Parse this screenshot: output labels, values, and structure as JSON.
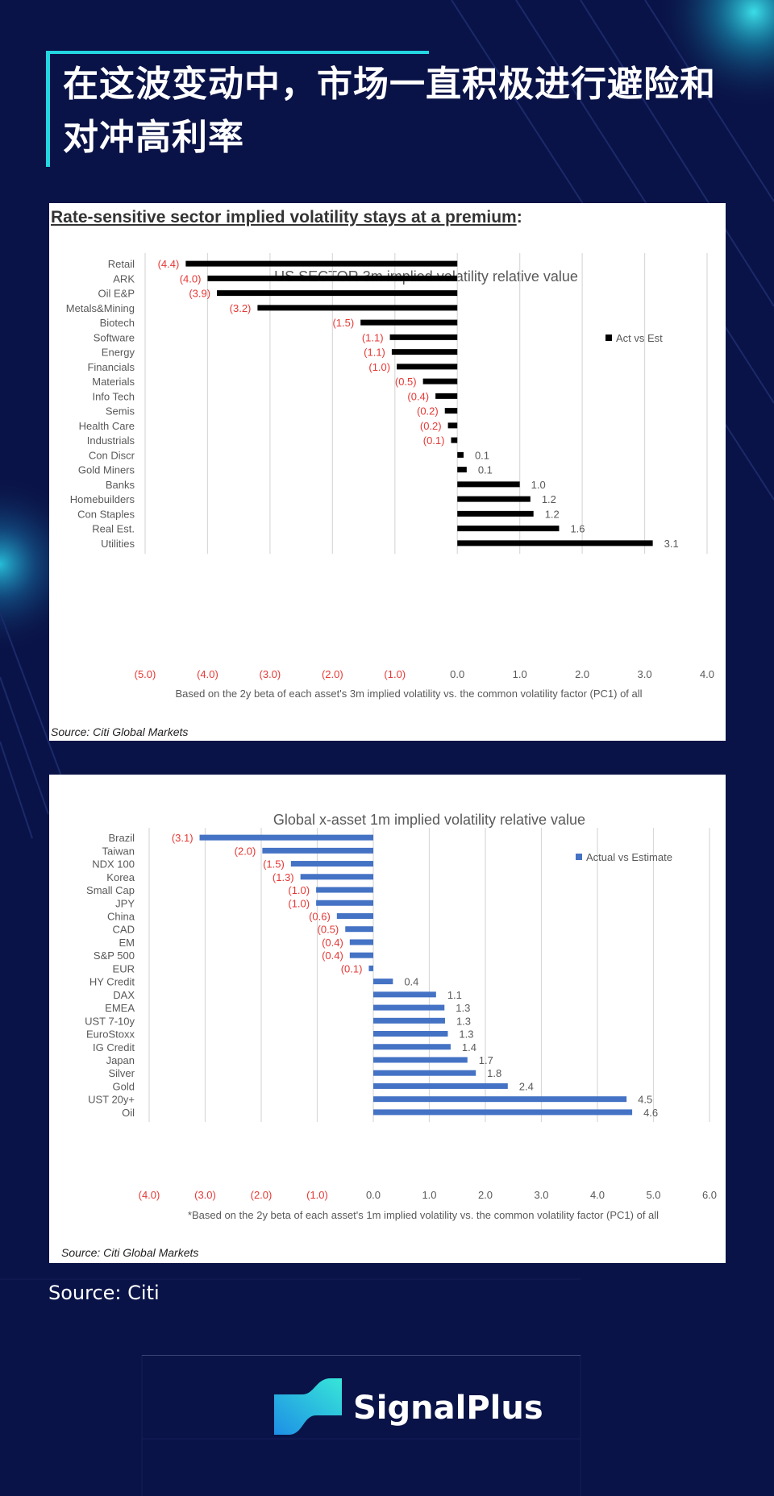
{
  "header": {
    "title": "在这波变动中，市场一直积极进行避险和对冲高利率"
  },
  "panel1": {
    "heading_underlined": "Rate-sensitive sector implied volatility stays at a premium",
    "heading_suffix": ":",
    "source": "Source: Citi Global Markets"
  },
  "panel2": {
    "source": "Source: Citi Global Markets"
  },
  "chart_data": [
    {
      "type": "bar",
      "orientation": "horizontal",
      "title": "US SECTOR 3m implied volatility relative value",
      "xlabel": "Based on the 2y beta of each asset's 3m implied volatility vs. the common volatility factor (PC1) of all",
      "xlim": [
        -5,
        4
      ],
      "ticks": [
        -5,
        -4,
        -3,
        -2,
        -1,
        0,
        1,
        2,
        3,
        4
      ],
      "tick_labels": [
        "(5.0)",
        "(4.0)",
        "(3.0)",
        "(2.0)",
        "(1.0)",
        "0.0",
        "1.0",
        "2.0",
        "3.0",
        "4.0"
      ],
      "legend": "Act vs Est",
      "series_color": "#000000",
      "negative_label_color": "#e53935",
      "categories": [
        "Retail",
        "ARK",
        "Oil E&P",
        "Metals&Mining",
        "Biotech",
        "Software",
        "Energy",
        "Financials",
        "Materials",
        "Info Tech",
        "Semis",
        "Health Care",
        "Industrials",
        "Con Discr",
        "Gold Miners",
        "Banks",
        "Homebuilders",
        "Con Staples",
        "Real Est.",
        "Utilities"
      ],
      "values": [
        -4.35,
        -4.0,
        -3.85,
        -3.2,
        -1.55,
        -1.08,
        -1.05,
        -0.97,
        -0.55,
        -0.35,
        -0.2,
        -0.15,
        -0.1,
        0.1,
        0.15,
        1.0,
        1.17,
        1.22,
        1.63,
        3.13
      ],
      "value_labels": [
        "(4.4)",
        "(4.0)",
        "(3.9)",
        "(3.2)",
        "(1.5)",
        "(1.1)",
        "(1.1)",
        "(1.0)",
        "(0.5)",
        "(0.4)",
        "(0.2)",
        "(0.2)",
        "(0.1)",
        "0.1",
        "0.1",
        "1.0",
        "1.2",
        "1.2",
        "1.6",
        "3.1"
      ]
    },
    {
      "type": "bar",
      "orientation": "horizontal",
      "title": "Global x-asset 1m implied volatility relative value",
      "xlabel": "*Based on the 2y beta of each asset's 1m implied volatility vs. the common volatility factor (PC1) of all",
      "xlim": [
        -4,
        6
      ],
      "ticks": [
        -4,
        -3,
        -2,
        -1,
        0,
        1,
        2,
        3,
        4,
        5,
        6
      ],
      "tick_labels": [
        "(4.0)",
        "(3.0)",
        "(2.0)",
        "(1.0)",
        "0.0",
        "1.0",
        "2.0",
        "3.0",
        "4.0",
        "5.0",
        "6.0"
      ],
      "legend": "Actual vs Estimate",
      "series_color": "#4472c4",
      "negative_label_color": "#e53935",
      "categories": [
        "Brazil",
        "Taiwan",
        "NDX 100",
        "Korea",
        "Small Cap",
        "JPY",
        "China",
        "CAD",
        "EM",
        "S&P 500",
        "EUR",
        "HY Credit",
        "DAX",
        "EMEA",
        "UST 7-10y",
        "EuroStoxx",
        "IG Credit",
        "Japan",
        "Silver",
        "Gold",
        "UST 20y+",
        "Oil"
      ],
      "values": [
        -3.1,
        -1.98,
        -1.47,
        -1.3,
        -1.02,
        -1.02,
        -0.65,
        -0.5,
        -0.42,
        -0.42,
        -0.08,
        0.35,
        1.12,
        1.27,
        1.28,
        1.33,
        1.38,
        1.68,
        1.83,
        2.4,
        4.52,
        4.62
      ],
      "value_labels": [
        "(3.1)",
        "(2.0)",
        "(1.5)",
        "(1.3)",
        "(1.0)",
        "(1.0)",
        "(0.6)",
        "(0.5)",
        "(0.4)",
        "(0.4)",
        "(0.1)",
        "0.4",
        "1.1",
        "1.3",
        "1.3",
        "1.3",
        "1.4",
        "1.7",
        "1.8",
        "2.4",
        "4.5",
        "4.6"
      ]
    }
  ],
  "footer": {
    "source": "Source: Citi",
    "brand": "SignalPlus"
  }
}
